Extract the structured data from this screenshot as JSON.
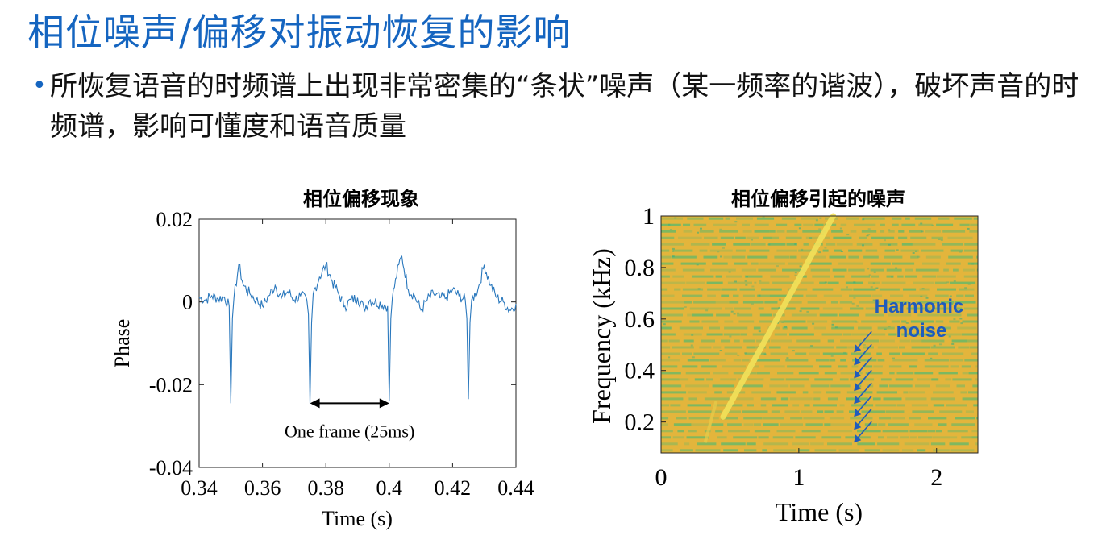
{
  "slide": {
    "title": "相位噪声/偏移对振动恢复的影响",
    "bullet": "所恢复语音的时频谱上出现非常密集的“条状”噪声（某一频率的谐波），破坏声音的时频谱，影响可懂度和语音质量"
  },
  "colors": {
    "title": "#1565c0",
    "bullet_marker": "#1565c0",
    "phase_line": "#2a78bd",
    "spectrogram_background": "#e3b53c",
    "spectrogram_stripe": "#5cb96c",
    "chirp_line": "#f2e25a",
    "annotation_text": "#1f5bbd"
  },
  "chart_data": [
    {
      "type": "line",
      "title": "相位偏移现象",
      "xlabel": "Time (s)",
      "ylabel": "Phase",
      "xlim": [
        0.34,
        0.44
      ],
      "ylim": [
        -0.04,
        0.02
      ],
      "xticks": [
        0.34,
        0.36,
        0.38,
        0.4,
        0.42,
        0.44
      ],
      "xtick_labels": [
        "0.34",
        "0.36",
        "0.38",
        "0.4",
        "0.42",
        "0.44"
      ],
      "yticks": [
        -0.04,
        -0.02,
        0,
        0.02
      ],
      "ytick_labels": [
        "-0.04",
        "-0.02",
        "0",
        "0.02"
      ],
      "grid": false,
      "series": [
        {
          "x": [
            0.34,
            0.342,
            0.344,
            0.346,
            0.348,
            0.3495,
            0.35,
            0.3505,
            0.351,
            0.3525,
            0.354,
            0.356,
            0.358,
            0.36,
            0.362,
            0.364,
            0.366,
            0.368,
            0.37,
            0.372,
            0.374,
            0.3745,
            0.375,
            0.3755,
            0.376,
            0.378,
            0.38,
            0.382,
            0.384,
            0.386,
            0.388,
            0.39,
            0.392,
            0.394,
            0.3995,
            0.4,
            0.4005,
            0.401,
            0.403,
            0.404,
            0.406,
            0.408,
            0.41,
            0.412,
            0.414,
            0.416,
            0.418,
            0.42,
            0.422,
            0.424,
            0.4245,
            0.425,
            0.4255,
            0.426,
            0.428,
            0.43,
            0.432,
            0.434,
            0.436,
            0.438,
            0.44
          ],
          "y": [
            0.001,
            0.0005,
            0.0015,
            0.0008,
            0.0012,
            -0.001,
            -0.0245,
            -0.004,
            0.001,
            0.009,
            0.004,
            0.002,
            0.0005,
            -0.001,
            0.0015,
            0.004,
            0.001,
            0.0025,
            0.0005,
            0.0015,
            0.0005,
            -0.003,
            -0.0245,
            -0.005,
            0.002,
            0.006,
            0.009,
            0.005,
            0.002,
            -0.001,
            0.0005,
            0.001,
            -0.0015,
            0.0005,
            -0.001,
            -0.024,
            -0.004,
            0.001,
            0.009,
            0.011,
            0.003,
            0.0015,
            -0.002,
            0.0005,
            0.002,
            0.001,
            0.001,
            0.003,
            0.0015,
            0.0005,
            -0.004,
            -0.0235,
            -0.005,
            0.0005,
            0.003,
            0.009,
            0.004,
            0.001,
            0.0,
            -0.002,
            -0.0005
          ]
        }
      ],
      "annotation": {
        "text": "One frame (25ms)",
        "from_x": 0.375,
        "to_x": 0.4,
        "y": -0.0245
      }
    },
    {
      "type": "heatmap",
      "title": "相位偏移引起的噪声",
      "xlabel": "Time (s)",
      "ylabel": "Frequency (kHz)",
      "xlim": [
        0,
        2.3
      ],
      "ylim": [
        0.08,
        1
      ],
      "xticks": [
        0,
        1,
        2
      ],
      "xtick_labels": [
        "0",
        "1",
        "2"
      ],
      "yticks": [
        0.2,
        0.4,
        0.6,
        0.8,
        1
      ],
      "ytick_labels": [
        "0.2",
        "0.4",
        "0.6",
        "0.8",
        "1"
      ],
      "harmonic_stripe_spacing_khz": 0.025,
      "chirp": {
        "x": [
          0.45,
          1.25
        ],
        "y": [
          0.22,
          1.0
        ]
      },
      "annotation": {
        "label_lines": [
          "Harmonic",
          "noise"
        ],
        "arrow_tips_y": [
          0.12,
          0.17,
          0.22,
          0.27,
          0.32,
          0.37,
          0.42,
          0.47
        ],
        "arrow_tip_x": 1.4
      }
    }
  ]
}
